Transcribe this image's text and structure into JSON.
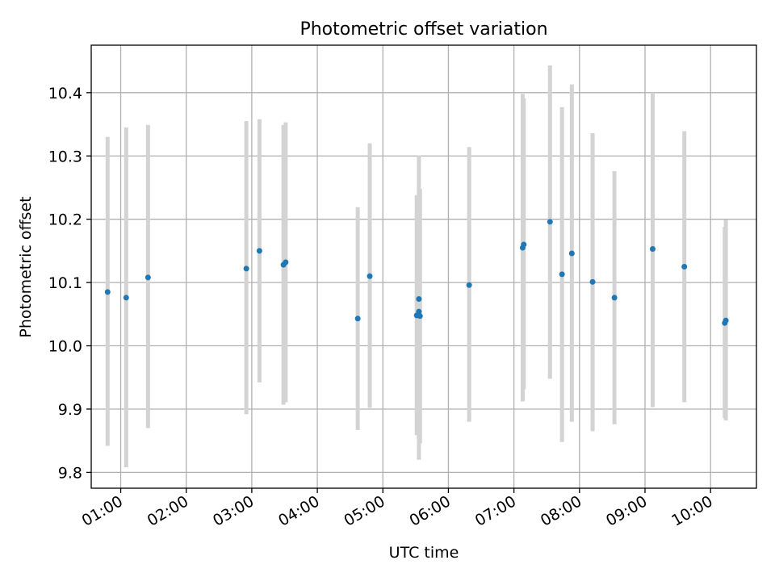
{
  "chart_data": {
    "type": "scatter",
    "title": "Photometric offset variation",
    "xlabel": "UTC time",
    "ylabel": "Photometric offset",
    "x_unit": "hours (UTC)",
    "xlim": [
      "00:33",
      "10:42"
    ],
    "ylim": [
      9.775,
      10.475
    ],
    "x_ticks": [
      "01:00",
      "02:00",
      "03:00",
      "04:00",
      "05:00",
      "06:00",
      "07:00",
      "08:00",
      "09:00",
      "10:00"
    ],
    "y_ticks": [
      "9.8",
      "9.9",
      "10.0",
      "10.1",
      "10.2",
      "10.3",
      "10.4"
    ],
    "grid": true,
    "point_color": "#1f77b4",
    "errorbar_color": "#d3d3d3",
    "points": [
      {
        "x": "00:48",
        "y": 10.085,
        "lo": 9.842,
        "hi": 10.33
      },
      {
        "x": "01:05",
        "y": 10.076,
        "lo": 9.808,
        "hi": 10.345
      },
      {
        "x": "01:25",
        "y": 10.108,
        "lo": 9.87,
        "hi": 10.349
      },
      {
        "x": "02:55",
        "y": 10.122,
        "lo": 9.892,
        "hi": 10.355
      },
      {
        "x": "03:07",
        "y": 10.15,
        "lo": 9.942,
        "hi": 10.358
      },
      {
        "x": "03:29",
        "y": 10.128,
        "lo": 9.907,
        "hi": 10.349
      },
      {
        "x": "03:31",
        "y": 10.132,
        "lo": 9.911,
        "hi": 10.353
      },
      {
        "x": "04:37",
        "y": 10.043,
        "lo": 9.867,
        "hi": 10.219
      },
      {
        "x": "04:48",
        "y": 10.11,
        "lo": 9.902,
        "hi": 10.32
      },
      {
        "x": "05:31",
        "y": 10.048,
        "lo": 9.859,
        "hi": 10.238
      },
      {
        "x": "05:33",
        "y": 10.054,
        "lo": 9.82,
        "hi": 10.301
      },
      {
        "x": "05:33",
        "y": 10.074,
        "lo": 9.85,
        "hi": 10.247
      },
      {
        "x": "05:34",
        "y": 10.047,
        "lo": 9.846,
        "hi": 10.248
      },
      {
        "x": "06:19",
        "y": 10.096,
        "lo": 9.88,
        "hi": 10.314
      },
      {
        "x": "07:08",
        "y": 10.155,
        "lo": 9.912,
        "hi": 10.398
      },
      {
        "x": "07:09",
        "y": 10.16,
        "lo": 9.931,
        "hi": 10.391
      },
      {
        "x": "07:33",
        "y": 10.196,
        "lo": 9.948,
        "hi": 10.443
      },
      {
        "x": "07:44",
        "y": 10.113,
        "lo": 9.848,
        "hi": 10.377
      },
      {
        "x": "07:53",
        "y": 10.146,
        "lo": 9.88,
        "hi": 10.413
      },
      {
        "x": "08:12",
        "y": 10.101,
        "lo": 9.865,
        "hi": 10.336
      },
      {
        "x": "08:32",
        "y": 10.076,
        "lo": 9.876,
        "hi": 10.276
      },
      {
        "x": "09:07",
        "y": 10.153,
        "lo": 9.903,
        "hi": 10.4
      },
      {
        "x": "09:36",
        "y": 10.125,
        "lo": 9.911,
        "hi": 10.339
      },
      {
        "x": "10:13",
        "y": 10.036,
        "lo": 9.886,
        "hi": 10.188
      },
      {
        "x": "10:14",
        "y": 10.04,
        "lo": 9.882,
        "hi": 10.199
      }
    ]
  }
}
